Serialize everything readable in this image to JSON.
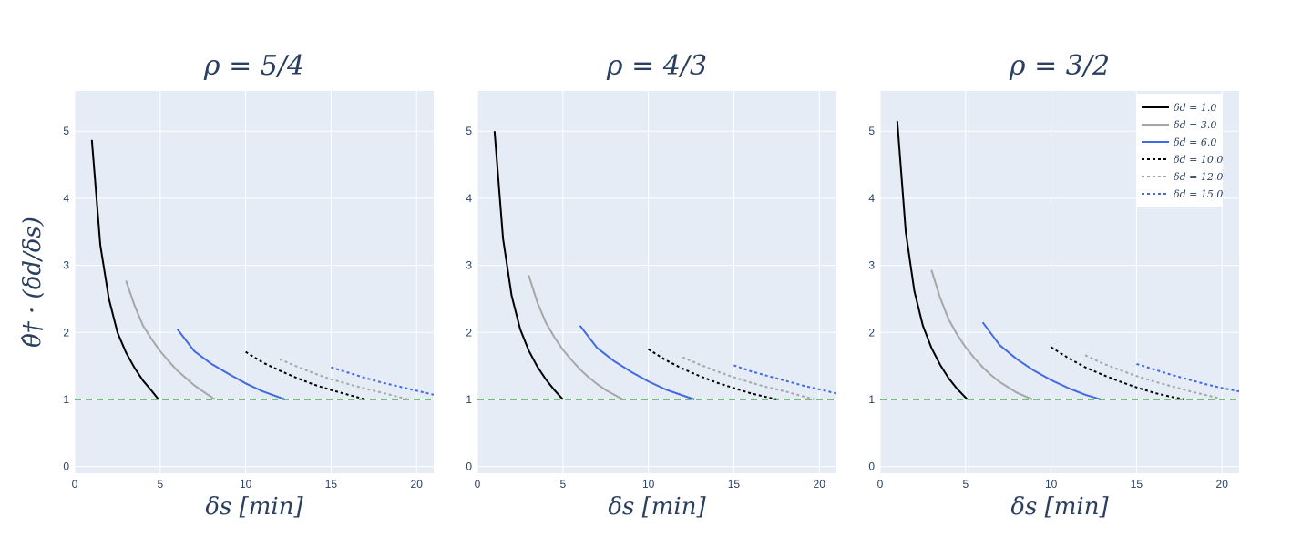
{
  "colors": {
    "plot_bg": "#e5ecf6",
    "grid": "#ffffff",
    "reference_line": "#5aa55a",
    "text": "#2a3f5f"
  },
  "chart_data": [
    {
      "type": "line",
      "title": "ρ = 5/4",
      "xlabel": "δs [min]",
      "ylabel": "θ̂† · (δd/δs)",
      "xlim": [
        0,
        21
      ],
      "ylim": [
        -0.1,
        5.6
      ],
      "xticks": [
        0,
        5,
        10,
        15,
        20
      ],
      "yticks": [
        0,
        1,
        2,
        3,
        4,
        5
      ],
      "reference_y": 1,
      "grid": true,
      "series": [
        {
          "name": "δd = 1.0",
          "color": "#000000",
          "dash": "solid",
          "x": [
            1.0,
            1.5,
            2.0,
            2.5,
            3.0,
            3.5,
            4.0,
            4.5,
            4.9
          ],
          "y": [
            4.87,
            3.3,
            2.5,
            2.0,
            1.7,
            1.47,
            1.28,
            1.13,
            1.0
          ]
        },
        {
          "name": "δd = 3.0",
          "color": "#a6a6a6",
          "dash": "solid",
          "x": [
            3.0,
            3.5,
            4.0,
            4.5,
            5.0,
            5.5,
            6.0,
            6.5,
            7.0,
            7.5,
            8.2
          ],
          "y": [
            2.77,
            2.4,
            2.1,
            1.9,
            1.72,
            1.57,
            1.43,
            1.32,
            1.21,
            1.12,
            1.0
          ]
        },
        {
          "name": "δd = 6.0",
          "color": "#4169e1",
          "dash": "solid",
          "x": [
            6.0,
            7.0,
            8.0,
            9.0,
            10.0,
            11.0,
            12.3
          ],
          "y": [
            2.05,
            1.72,
            1.53,
            1.38,
            1.24,
            1.12,
            1.0
          ]
        },
        {
          "name": "δd = 10.0",
          "color": "#000000",
          "dash": "dot",
          "x": [
            10.0,
            11.0,
            12.0,
            13.0,
            14.0,
            15.0,
            16.0,
            17.0
          ],
          "y": [
            1.71,
            1.55,
            1.43,
            1.32,
            1.22,
            1.14,
            1.07,
            1.0
          ]
        },
        {
          "name": "δd = 12.0",
          "color": "#a6a6a6",
          "dash": "dot",
          "x": [
            12.0,
            13.0,
            14.0,
            15.0,
            16.0,
            17.0,
            18.0,
            19.5
          ],
          "y": [
            1.6,
            1.49,
            1.39,
            1.3,
            1.23,
            1.16,
            1.1,
            1.0
          ]
        },
        {
          "name": "δd = 15.0",
          "color": "#4169e1",
          "dash": "dot",
          "x": [
            15.0,
            16.0,
            17.0,
            18.0,
            19.0,
            20.0,
            21.0
          ],
          "y": [
            1.48,
            1.4,
            1.32,
            1.25,
            1.19,
            1.13,
            1.07
          ]
        }
      ]
    },
    {
      "type": "line",
      "title": "ρ = 4/3",
      "xlabel": "δs [min]",
      "ylabel": "",
      "xlim": [
        0,
        21
      ],
      "ylim": [
        -0.1,
        5.6
      ],
      "xticks": [
        0,
        5,
        10,
        15,
        20
      ],
      "yticks": [
        0,
        1,
        2,
        3,
        4,
        5
      ],
      "reference_y": 1,
      "grid": true,
      "series": [
        {
          "name": "δd = 1.0",
          "color": "#000000",
          "dash": "solid",
          "x": [
            1.0,
            1.5,
            2.0,
            2.5,
            3.0,
            3.5,
            4.0,
            4.5,
            5.0
          ],
          "y": [
            5.0,
            3.4,
            2.55,
            2.05,
            1.73,
            1.49,
            1.3,
            1.14,
            1.0
          ]
        },
        {
          "name": "δd = 3.0",
          "color": "#a6a6a6",
          "dash": "solid",
          "x": [
            3.0,
            3.5,
            4.0,
            4.5,
            5.0,
            5.5,
            6.0,
            6.5,
            7.0,
            7.5,
            8.5
          ],
          "y": [
            2.85,
            2.45,
            2.15,
            1.93,
            1.74,
            1.59,
            1.45,
            1.33,
            1.23,
            1.14,
            1.0
          ]
        },
        {
          "name": "δd = 6.0",
          "color": "#4169e1",
          "dash": "solid",
          "x": [
            6.0,
            7.0,
            8.0,
            9.0,
            10.0,
            11.0,
            12.0,
            12.7
          ],
          "y": [
            2.1,
            1.77,
            1.57,
            1.41,
            1.27,
            1.15,
            1.06,
            1.0
          ]
        },
        {
          "name": "δd = 10.0",
          "color": "#000000",
          "dash": "dot",
          "x": [
            10.0,
            11.0,
            12.0,
            13.0,
            14.0,
            15.0,
            16.0,
            17.5
          ],
          "y": [
            1.75,
            1.59,
            1.46,
            1.35,
            1.25,
            1.17,
            1.09,
            1.0
          ]
        },
        {
          "name": "δd = 12.0",
          "color": "#a6a6a6",
          "dash": "dot",
          "x": [
            12.0,
            13.0,
            14.0,
            15.0,
            16.0,
            17.0,
            18.0,
            19.7
          ],
          "y": [
            1.63,
            1.52,
            1.42,
            1.33,
            1.25,
            1.18,
            1.12,
            1.0
          ]
        },
        {
          "name": "δd = 15.0",
          "color": "#4169e1",
          "dash": "dot",
          "x": [
            15.0,
            16.0,
            17.0,
            18.0,
            19.0,
            20.0,
            21.0
          ],
          "y": [
            1.51,
            1.42,
            1.35,
            1.28,
            1.21,
            1.15,
            1.09
          ]
        }
      ]
    },
    {
      "type": "line",
      "title": "ρ = 3/2",
      "xlabel": "δs [min]",
      "ylabel": "",
      "xlim": [
        0,
        21
      ],
      "ylim": [
        -0.1,
        5.6
      ],
      "xticks": [
        0,
        5,
        10,
        15,
        20
      ],
      "yticks": [
        0,
        1,
        2,
        3,
        4,
        5
      ],
      "reference_y": 1,
      "grid": true,
      "series": [
        {
          "name": "δd = 1.0",
          "color": "#000000",
          "dash": "solid",
          "x": [
            1.0,
            1.5,
            2.0,
            2.5,
            3.0,
            3.5,
            4.0,
            4.5,
            5.1
          ],
          "y": [
            5.15,
            3.5,
            2.62,
            2.1,
            1.77,
            1.52,
            1.32,
            1.16,
            1.0
          ]
        },
        {
          "name": "δd = 3.0",
          "color": "#a6a6a6",
          "dash": "solid",
          "x": [
            3.0,
            3.5,
            4.0,
            4.5,
            5.0,
            5.5,
            6.0,
            6.5,
            7.0,
            8.0,
            8.9
          ],
          "y": [
            2.93,
            2.52,
            2.2,
            1.97,
            1.78,
            1.62,
            1.48,
            1.36,
            1.26,
            1.1,
            1.0
          ]
        },
        {
          "name": "δd = 6.0",
          "color": "#4169e1",
          "dash": "solid",
          "x": [
            6.0,
            7.0,
            8.0,
            9.0,
            10.0,
            11.0,
            12.0,
            12.9
          ],
          "y": [
            2.15,
            1.81,
            1.6,
            1.43,
            1.29,
            1.17,
            1.07,
            1.0
          ]
        },
        {
          "name": "δd = 10.0",
          "color": "#000000",
          "dash": "dot",
          "x": [
            10.0,
            11.0,
            12.0,
            13.0,
            14.0,
            15.0,
            16.0,
            17.0,
            17.8
          ],
          "y": [
            1.78,
            1.62,
            1.48,
            1.37,
            1.27,
            1.18,
            1.1,
            1.04,
            1.0
          ]
        },
        {
          "name": "δd = 12.0",
          "color": "#a6a6a6",
          "dash": "dot",
          "x": [
            12.0,
            13.0,
            14.0,
            15.0,
            16.0,
            17.0,
            18.0,
            19.8
          ],
          "y": [
            1.66,
            1.54,
            1.44,
            1.35,
            1.27,
            1.2,
            1.13,
            1.02
          ]
        },
        {
          "name": "δd = 15.0",
          "color": "#4169e1",
          "dash": "dot",
          "x": [
            15.0,
            16.0,
            17.0,
            18.0,
            19.0,
            20.0,
            21.0
          ],
          "y": [
            1.53,
            1.45,
            1.37,
            1.3,
            1.23,
            1.17,
            1.12
          ]
        }
      ]
    }
  ],
  "legend": {
    "placement": "top-right of last panel",
    "entries": [
      {
        "label": "δd = 1.0",
        "color": "#000000",
        "dash": "solid"
      },
      {
        "label": "δd = 3.0",
        "color": "#a6a6a6",
        "dash": "solid"
      },
      {
        "label": "δd = 6.0",
        "color": "#4169e1",
        "dash": "solid"
      },
      {
        "label": "δd = 10.0",
        "color": "#000000",
        "dash": "dot"
      },
      {
        "label": "δd = 12.0",
        "color": "#a6a6a6",
        "dash": "dot"
      },
      {
        "label": "δd = 15.0",
        "color": "#4169e1",
        "dash": "dot"
      }
    ]
  }
}
